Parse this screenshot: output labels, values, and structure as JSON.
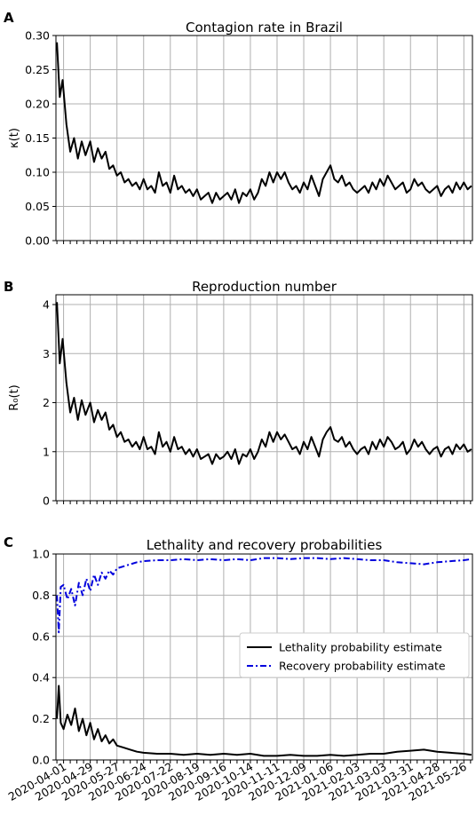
{
  "chart_data": [
    {
      "panel": "A",
      "type": "line",
      "title": "Contagion rate in Brazil",
      "ylabel": "κ(t)",
      "ylim": [
        0.0,
        0.3
      ],
      "yticks": [
        "0.00",
        "0.05",
        "0.10",
        "0.15",
        "0.20",
        "0.25",
        "0.30"
      ],
      "grid": true,
      "series": [
        {
          "color": "#000000",
          "style": "solid",
          "x": [
            "2020-03-25",
            "2020-03-28",
            "2020-03-31",
            "2020-04-04",
            "2020-04-08",
            "2020-04-12",
            "2020-04-16",
            "2020-04-20",
            "2020-04-24",
            "2020-04-29",
            "2020-05-03",
            "2020-05-07",
            "2020-05-11",
            "2020-05-15",
            "2020-05-19",
            "2020-05-23",
            "2020-05-27",
            "2020-05-31",
            "2020-06-04",
            "2020-06-08",
            "2020-06-12",
            "2020-06-16",
            "2020-06-20",
            "2020-06-24",
            "2020-06-28",
            "2020-07-02",
            "2020-07-06",
            "2020-07-10",
            "2020-07-14",
            "2020-07-18",
            "2020-07-22",
            "2020-07-26",
            "2020-07-30",
            "2020-08-03",
            "2020-08-07",
            "2020-08-11",
            "2020-08-15",
            "2020-08-19",
            "2020-08-23",
            "2020-08-27",
            "2020-08-31",
            "2020-09-04",
            "2020-09-08",
            "2020-09-12",
            "2020-09-16",
            "2020-09-20",
            "2020-09-24",
            "2020-09-28",
            "2020-10-02",
            "2020-10-06",
            "2020-10-10",
            "2020-10-14",
            "2020-10-18",
            "2020-10-22",
            "2020-10-26",
            "2020-10-30",
            "2020-11-03",
            "2020-11-07",
            "2020-11-11",
            "2020-11-15",
            "2020-11-19",
            "2020-11-23",
            "2020-11-27",
            "2020-12-01",
            "2020-12-05",
            "2020-12-09",
            "2020-12-13",
            "2020-12-17",
            "2020-12-21",
            "2020-12-25",
            "2020-12-29",
            "2021-01-02",
            "2021-01-06",
            "2021-01-10",
            "2021-01-14",
            "2021-01-18",
            "2021-01-22",
            "2021-01-26",
            "2021-01-30",
            "2021-02-03",
            "2021-02-07",
            "2021-02-11",
            "2021-02-15",
            "2021-02-19",
            "2021-02-23",
            "2021-02-27",
            "2021-03-03",
            "2021-03-07",
            "2021-03-11",
            "2021-03-15",
            "2021-03-19",
            "2021-03-23",
            "2021-03-27",
            "2021-03-31",
            "2021-04-04",
            "2021-04-08",
            "2021-04-12",
            "2021-04-16",
            "2021-04-20",
            "2021-04-24",
            "2021-04-28",
            "2021-05-02",
            "2021-05-06",
            "2021-05-10",
            "2021-05-14",
            "2021-05-18",
            "2021-05-22",
            "2021-05-26",
            "2021-05-30",
            "2021-06-03"
          ],
          "y": [
            0.29,
            0.21,
            0.235,
            0.17,
            0.13,
            0.15,
            0.12,
            0.145,
            0.125,
            0.145,
            0.115,
            0.135,
            0.12,
            0.13,
            0.105,
            0.11,
            0.095,
            0.1,
            0.085,
            0.09,
            0.08,
            0.085,
            0.075,
            0.09,
            0.075,
            0.08,
            0.07,
            0.1,
            0.08,
            0.085,
            0.07,
            0.095,
            0.075,
            0.08,
            0.07,
            0.075,
            0.065,
            0.075,
            0.06,
            0.065,
            0.07,
            0.055,
            0.07,
            0.06,
            0.065,
            0.07,
            0.06,
            0.075,
            0.055,
            0.07,
            0.065,
            0.075,
            0.06,
            0.07,
            0.09,
            0.08,
            0.1,
            0.085,
            0.1,
            0.09,
            0.1,
            0.085,
            0.075,
            0.08,
            0.07,
            0.085,
            0.075,
            0.095,
            0.08,
            0.065,
            0.09,
            0.1,
            0.11,
            0.09,
            0.085,
            0.095,
            0.08,
            0.085,
            0.075,
            0.07,
            0.075,
            0.08,
            0.07,
            0.085,
            0.075,
            0.09,
            0.08,
            0.095,
            0.085,
            0.075,
            0.08,
            0.085,
            0.07,
            0.075,
            0.09,
            0.08,
            0.085,
            0.075,
            0.07,
            0.075,
            0.08,
            0.065,
            0.075,
            0.08,
            0.07,
            0.085,
            0.075,
            0.085,
            0.075,
            0.08
          ]
        }
      ]
    },
    {
      "panel": "B",
      "type": "line",
      "title": "Reproduction number",
      "ylabel": "R₀(t)",
      "ylim": [
        0,
        4.2
      ],
      "yticks": [
        "0",
        "1",
        "2",
        "3",
        "4"
      ],
      "grid": true,
      "series": [
        {
          "color": "#000000",
          "style": "solid",
          "x": [
            "2020-03-25",
            "2020-03-28",
            "2020-03-31",
            "2020-04-04",
            "2020-04-08",
            "2020-04-12",
            "2020-04-16",
            "2020-04-20",
            "2020-04-24",
            "2020-04-29",
            "2020-05-03",
            "2020-05-07",
            "2020-05-11",
            "2020-05-15",
            "2020-05-19",
            "2020-05-23",
            "2020-05-27",
            "2020-05-31",
            "2020-06-04",
            "2020-06-08",
            "2020-06-12",
            "2020-06-16",
            "2020-06-20",
            "2020-06-24",
            "2020-06-28",
            "2020-07-02",
            "2020-07-06",
            "2020-07-10",
            "2020-07-14",
            "2020-07-18",
            "2020-07-22",
            "2020-07-26",
            "2020-07-30",
            "2020-08-03",
            "2020-08-07",
            "2020-08-11",
            "2020-08-15",
            "2020-08-19",
            "2020-08-23",
            "2020-08-27",
            "2020-08-31",
            "2020-09-04",
            "2020-09-08",
            "2020-09-12",
            "2020-09-16",
            "2020-09-20",
            "2020-09-24",
            "2020-09-28",
            "2020-10-02",
            "2020-10-06",
            "2020-10-10",
            "2020-10-14",
            "2020-10-18",
            "2020-10-22",
            "2020-10-26",
            "2020-10-30",
            "2020-11-03",
            "2020-11-07",
            "2020-11-11",
            "2020-11-15",
            "2020-11-19",
            "2020-11-23",
            "2020-11-27",
            "2020-12-01",
            "2020-12-05",
            "2020-12-09",
            "2020-12-13",
            "2020-12-17",
            "2020-12-21",
            "2020-12-25",
            "2020-12-29",
            "2021-01-02",
            "2021-01-06",
            "2021-01-10",
            "2021-01-14",
            "2021-01-18",
            "2021-01-22",
            "2021-01-26",
            "2021-01-30",
            "2021-02-03",
            "2021-02-07",
            "2021-02-11",
            "2021-02-15",
            "2021-02-19",
            "2021-02-23",
            "2021-02-27",
            "2021-03-03",
            "2021-03-07",
            "2021-03-11",
            "2021-03-15",
            "2021-03-19",
            "2021-03-23",
            "2021-03-27",
            "2021-03-31",
            "2021-04-04",
            "2021-04-08",
            "2021-04-12",
            "2021-04-16",
            "2021-04-20",
            "2021-04-24",
            "2021-04-28",
            "2021-05-02",
            "2021-05-06",
            "2021-05-10",
            "2021-05-14",
            "2021-05-18",
            "2021-05-22",
            "2021-05-26",
            "2021-05-30",
            "2021-06-03"
          ],
          "y": [
            4.05,
            2.8,
            3.3,
            2.4,
            1.8,
            2.1,
            1.65,
            2.05,
            1.75,
            2.0,
            1.6,
            1.85,
            1.65,
            1.8,
            1.45,
            1.55,
            1.3,
            1.4,
            1.2,
            1.25,
            1.1,
            1.2,
            1.05,
            1.3,
            1.05,
            1.1,
            0.95,
            1.4,
            1.1,
            1.2,
            1.0,
            1.3,
            1.05,
            1.1,
            0.95,
            1.05,
            0.9,
            1.05,
            0.85,
            0.9,
            0.95,
            0.75,
            0.95,
            0.85,
            0.9,
            1.0,
            0.85,
            1.05,
            0.75,
            0.95,
            0.9,
            1.05,
            0.85,
            1.0,
            1.25,
            1.1,
            1.4,
            1.2,
            1.4,
            1.25,
            1.35,
            1.2,
            1.05,
            1.1,
            0.95,
            1.2,
            1.05,
            1.3,
            1.1,
            0.9,
            1.25,
            1.4,
            1.5,
            1.25,
            1.2,
            1.3,
            1.1,
            1.2,
            1.05,
            0.95,
            1.05,
            1.1,
            0.95,
            1.2,
            1.05,
            1.25,
            1.1,
            1.3,
            1.2,
            1.05,
            1.1,
            1.2,
            0.95,
            1.05,
            1.25,
            1.1,
            1.2,
            1.05,
            0.95,
            1.05,
            1.1,
            0.9,
            1.05,
            1.1,
            0.95,
            1.15,
            1.05,
            1.15,
            1.0,
            1.05
          ]
        }
      ]
    },
    {
      "panel": "C",
      "type": "line",
      "title": "Lethality and recovery probabilities",
      "ylim": [
        0.0,
        1.0
      ],
      "yticks": [
        "0.0",
        "0.2",
        "0.4",
        "0.6",
        "0.8",
        "1.0"
      ],
      "xticks": [
        "2020-04-01",
        "2020-04-29",
        "2020-05-27",
        "2020-06-24",
        "2020-07-22",
        "2020-08-19",
        "2020-09-16",
        "2020-10-14",
        "2020-11-11",
        "2020-12-09",
        "2021-01-06",
        "2021-02-03",
        "2021-03-03",
        "2021-03-31",
        "2021-04-28",
        "2021-05-26"
      ],
      "grid": true,
      "legend_position": "center-right",
      "series": [
        {
          "name": "Lethality probability estimate",
          "color": "#000000",
          "style": "solid",
          "x": [
            "2020-03-25",
            "2020-03-27",
            "2020-03-29",
            "2020-04-01",
            "2020-04-05",
            "2020-04-09",
            "2020-04-13",
            "2020-04-17",
            "2020-04-21",
            "2020-04-25",
            "2020-04-29",
            "2020-05-03",
            "2020-05-07",
            "2020-05-11",
            "2020-05-15",
            "2020-05-19",
            "2020-05-23",
            "2020-05-27",
            "2020-06-03",
            "2020-06-10",
            "2020-06-17",
            "2020-06-24",
            "2020-07-08",
            "2020-07-22",
            "2020-08-05",
            "2020-08-19",
            "2020-09-02",
            "2020-09-16",
            "2020-09-30",
            "2020-10-14",
            "2020-10-28",
            "2020-11-11",
            "2020-11-25",
            "2020-12-09",
            "2020-12-23",
            "2021-01-06",
            "2021-01-20",
            "2021-02-03",
            "2021-02-17",
            "2021-03-03",
            "2021-03-17",
            "2021-03-31",
            "2021-04-14",
            "2021-04-28",
            "2021-05-12",
            "2021-05-26",
            "2021-06-03"
          ],
          "y": [
            0.2,
            0.36,
            0.18,
            0.15,
            0.22,
            0.17,
            0.25,
            0.14,
            0.2,
            0.12,
            0.18,
            0.1,
            0.15,
            0.09,
            0.12,
            0.08,
            0.1,
            0.07,
            0.06,
            0.05,
            0.04,
            0.035,
            0.03,
            0.03,
            0.025,
            0.03,
            0.025,
            0.03,
            0.025,
            0.03,
            0.02,
            0.02,
            0.025,
            0.02,
            0.02,
            0.025,
            0.02,
            0.025,
            0.03,
            0.03,
            0.04,
            0.045,
            0.05,
            0.04,
            0.035,
            0.03,
            0.025
          ]
        },
        {
          "name": "Recovery probability estimate",
          "color": "#0000dd",
          "style": "dashdot",
          "x": [
            "2020-03-25",
            "2020-03-27",
            "2020-03-29",
            "2020-04-01",
            "2020-04-05",
            "2020-04-09",
            "2020-04-13",
            "2020-04-17",
            "2020-04-21",
            "2020-04-25",
            "2020-04-29",
            "2020-05-03",
            "2020-05-07",
            "2020-05-11",
            "2020-05-15",
            "2020-05-19",
            "2020-05-23",
            "2020-05-27",
            "2020-06-03",
            "2020-06-10",
            "2020-06-17",
            "2020-06-24",
            "2020-07-08",
            "2020-07-22",
            "2020-08-05",
            "2020-08-19",
            "2020-09-02",
            "2020-09-16",
            "2020-09-30",
            "2020-10-14",
            "2020-10-28",
            "2020-11-11",
            "2020-11-25",
            "2020-12-09",
            "2020-12-23",
            "2021-01-06",
            "2021-01-20",
            "2021-02-03",
            "2021-02-17",
            "2021-03-03",
            "2021-03-17",
            "2021-03-31",
            "2021-04-14",
            "2021-04-28",
            "2021-05-12",
            "2021-05-26",
            "2021-06-03"
          ],
          "y": [
            0.8,
            0.62,
            0.84,
            0.85,
            0.78,
            0.83,
            0.75,
            0.86,
            0.8,
            0.88,
            0.82,
            0.9,
            0.85,
            0.91,
            0.88,
            0.92,
            0.9,
            0.93,
            0.94,
            0.95,
            0.96,
            0.965,
            0.97,
            0.97,
            0.975,
            0.97,
            0.975,
            0.97,
            0.975,
            0.97,
            0.98,
            0.98,
            0.975,
            0.98,
            0.98,
            0.975,
            0.98,
            0.975,
            0.97,
            0.97,
            0.96,
            0.955,
            0.95,
            0.96,
            0.965,
            0.97,
            0.975
          ]
        }
      ]
    }
  ]
}
